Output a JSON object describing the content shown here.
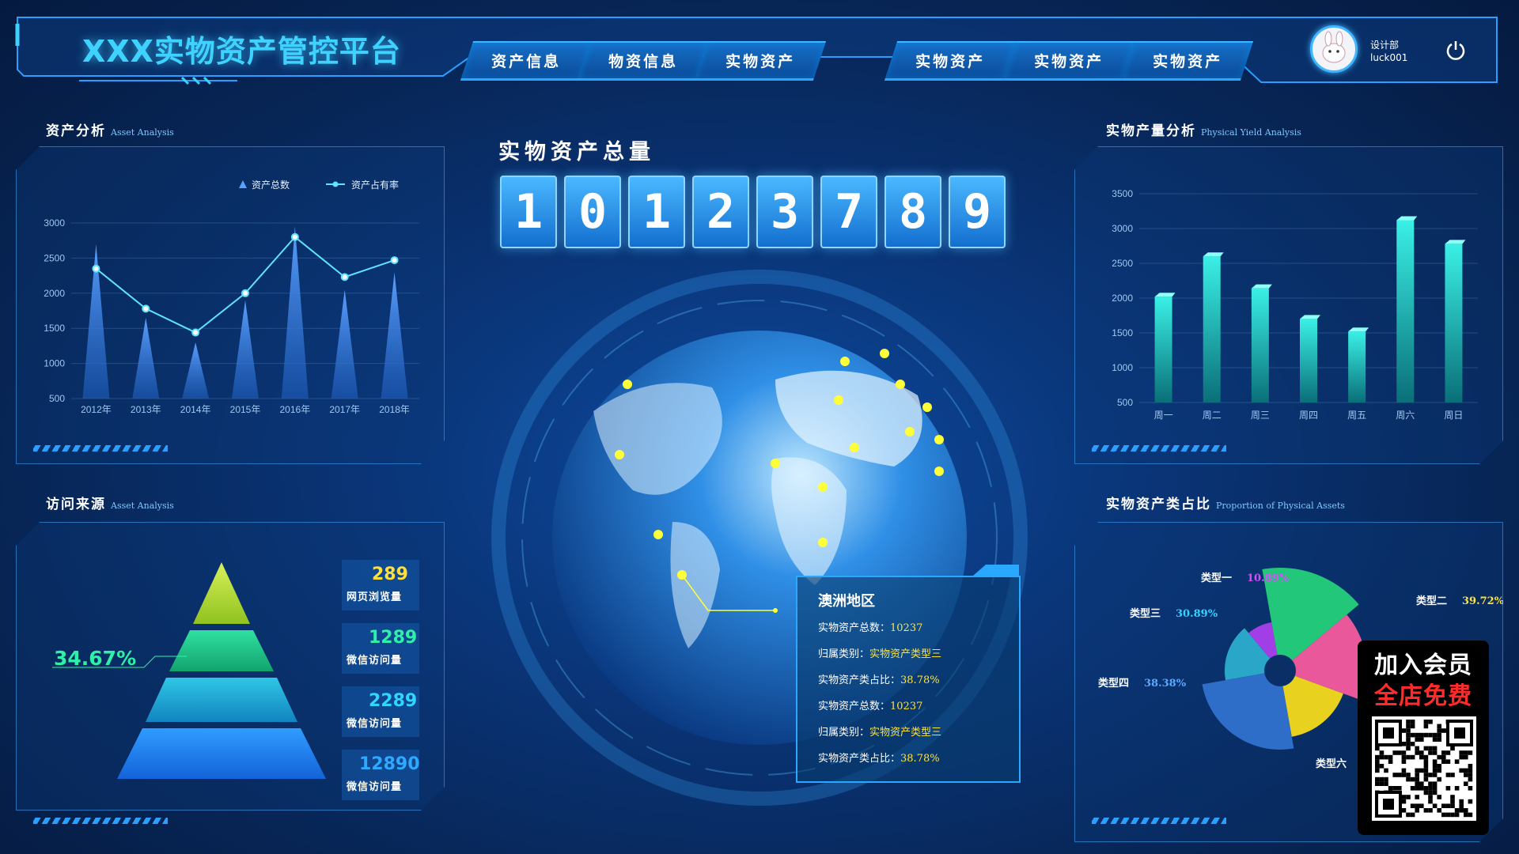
{
  "header": {
    "title": "XXX实物资产管控平台",
    "tabs": [
      "资产信息",
      "物资信息",
      "实物资产",
      "实物资产",
      "实物资产",
      "实物资产"
    ],
    "user": {
      "dept": "设计部",
      "name": "luck001"
    }
  },
  "asset_analysis": {
    "title": "资产分析",
    "subtitle": "Asset Analysis",
    "legend": [
      "资产总数",
      "资产占有率"
    ]
  },
  "visit_source": {
    "title": "访问来源",
    "subtitle": "Asset Analysis",
    "percent": "34.67%",
    "layers": [
      {
        "value": "289",
        "label": "网页浏览量"
      },
      {
        "value": "1289",
        "label": "微信访问量"
      },
      {
        "value": "2289",
        "label": "微信访问量"
      },
      {
        "value": "12890",
        "label": "微信访问量"
      }
    ]
  },
  "total": {
    "title": "实物资产总量",
    "digits": [
      "1",
      "0",
      "1",
      "2",
      "3",
      "7",
      "8",
      "9"
    ]
  },
  "tooltip": {
    "title": "澳洲地区",
    "rows": [
      {
        "label": "实物资产总数：",
        "value": "10237"
      },
      {
        "label": "归属类别：",
        "value": "实物资产类型三"
      },
      {
        "label": "实物资产类占比：",
        "value": "38.78%"
      },
      {
        "label": "实物资产总数：",
        "value": "10237"
      },
      {
        "label": "归属类别：",
        "value": "实物资产类型三"
      },
      {
        "label": "实物资产类占比：",
        "value": "38.78%"
      }
    ]
  },
  "yield_analysis": {
    "title": "实物产量分析",
    "subtitle": "Physical Yield Analysis"
  },
  "proportion": {
    "title": "实物资产类占比",
    "subtitle": "Proportion of Physical Assets"
  },
  "promo": {
    "line1": "加入会员",
    "line2": "全店免费"
  },
  "colors": {
    "accent": "#3fd2ff",
    "yellow": "#ffe23a",
    "bg": "#0a3578"
  },
  "chart_data": [
    {
      "type": "bar",
      "categories": [
        "2012年",
        "2013年",
        "2014年",
        "2015年",
        "2016年",
        "2017年",
        "2018年"
      ],
      "series": [
        {
          "name": "资产总数",
          "type": "bar",
          "values": [
            2700,
            1650,
            1300,
            1900,
            2950,
            2050,
            2300
          ]
        },
        {
          "name": "资产占有率",
          "type": "line",
          "values": [
            2350,
            1780,
            1440,
            2000,
            2800,
            2230,
            2470
          ]
        }
      ],
      "ylim": [
        500,
        3000
      ],
      "yticks": [
        500,
        1000,
        1500,
        2000,
        2500,
        3000
      ],
      "legend": "top-right",
      "grid": true
    },
    {
      "type": "bar",
      "categories": [
        "周一",
        "周二",
        "周三",
        "周四",
        "周五",
        "周六",
        "周日"
      ],
      "values": [
        2020,
        2600,
        2140,
        1700,
        1520,
        3120,
        2780
      ],
      "ylim": [
        500,
        3500
      ],
      "yticks": [
        500,
        1000,
        1500,
        2000,
        2500,
        3000,
        3500
      ],
      "grid": true
    },
    {
      "type": "pie",
      "labels": [
        "类型一",
        "类型二",
        "类型三",
        "类型四",
        "类型六"
      ],
      "values": [
        10.89,
        39.72,
        30.89,
        38.38,
        null
      ],
      "value_labels": [
        "10.89%",
        "39.72%",
        "30.89%",
        "38.38%",
        ""
      ]
    }
  ]
}
